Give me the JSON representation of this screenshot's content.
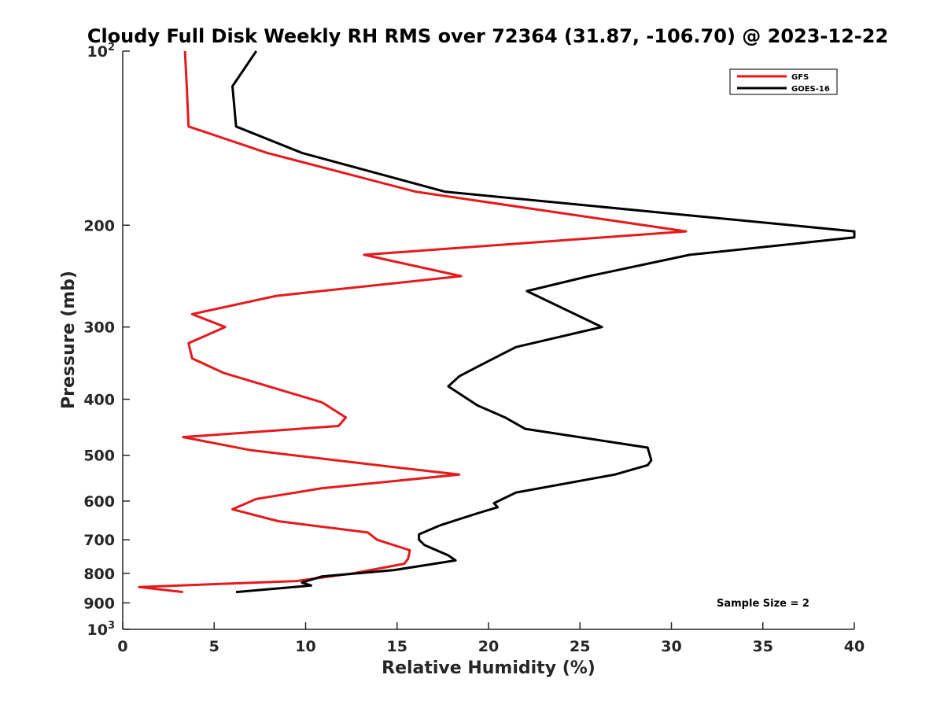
{
  "chart_data": {
    "type": "line",
    "title": "Cloudy Full Disk Weekly RH RMS over 72364 (31.87, -106.70) @ 2023-12-22",
    "xlabel": "Relative Humidity (%)",
    "ylabel": "Pressure (mb)",
    "xlim": [
      0,
      40
    ],
    "ylim": [
      100,
      1000
    ],
    "y_scale": "log",
    "y_reversed": true,
    "grid": false,
    "legend_position": "top-right",
    "x_ticks": [
      0,
      5,
      10,
      15,
      20,
      25,
      30,
      35,
      40
    ],
    "y_ticks": [
      {
        "value": 100,
        "base": "10",
        "exp": "2"
      },
      {
        "value": 200,
        "label": "200"
      },
      {
        "value": 300,
        "label": "300"
      },
      {
        "value": 400,
        "label": "400"
      },
      {
        "value": 500,
        "label": "500"
      },
      {
        "value": 600,
        "label": "600"
      },
      {
        "value": 700,
        "label": "700"
      },
      {
        "value": 800,
        "label": "800"
      },
      {
        "value": 900,
        "label": "900"
      },
      {
        "value": 1000,
        "base": "10",
        "exp": "3"
      }
    ],
    "annotation": "Sample Size = 2",
    "series": [
      {
        "name": "GFS",
        "color": "#e41a1c",
        "points": [
          [
            3.4,
            100
          ],
          [
            3.5,
            115
          ],
          [
            3.6,
            135
          ],
          [
            7.9,
            150
          ],
          [
            16,
            175
          ],
          [
            30.8,
            205
          ],
          [
            13.2,
            225
          ],
          [
            18.5,
            245
          ],
          [
            8.4,
            265
          ],
          [
            3.8,
            285
          ],
          [
            5.6,
            300
          ],
          [
            3.6,
            320
          ],
          [
            3.8,
            340
          ],
          [
            5.5,
            360
          ],
          [
            10.9,
            405
          ],
          [
            12.2,
            430
          ],
          [
            11.8,
            445
          ],
          [
            3.3,
            465
          ],
          [
            7,
            490
          ],
          [
            13.9,
            520
          ],
          [
            18.4,
            540
          ],
          [
            10.9,
            570
          ],
          [
            7.3,
            595
          ],
          [
            6.0,
            620
          ],
          [
            8.5,
            650
          ],
          [
            13.4,
            680
          ],
          [
            13.9,
            700
          ],
          [
            15.7,
            730
          ],
          [
            15.6,
            755
          ],
          [
            15.4,
            770
          ],
          [
            12.6,
            800
          ],
          [
            9.5,
            825
          ],
          [
            0.9,
            845
          ],
          [
            3.3,
            862
          ]
        ]
      },
      {
        "name": "GOES-16",
        "color": "#000000",
        "points": [
          [
            7.3,
            100
          ],
          [
            6.0,
            115
          ],
          [
            6.2,
            135
          ],
          [
            9.8,
            150
          ],
          [
            17.6,
            175
          ],
          [
            40,
            205
          ],
          [
            40,
            210
          ],
          [
            31,
            225
          ],
          [
            25.5,
            245
          ],
          [
            22.1,
            260
          ],
          [
            26.2,
            300
          ],
          [
            21.5,
            325
          ],
          [
            19.5,
            350
          ],
          [
            18.4,
            365
          ],
          [
            17.8,
            380
          ],
          [
            19.4,
            410
          ],
          [
            20.9,
            430
          ],
          [
            22.0,
            450
          ],
          [
            28.7,
            485
          ],
          [
            28.9,
            510
          ],
          [
            28.7,
            520
          ],
          [
            26.9,
            540
          ],
          [
            21.5,
            580
          ],
          [
            20.3,
            605
          ],
          [
            20.5,
            615
          ],
          [
            19.4,
            630
          ],
          [
            17.4,
            660
          ],
          [
            16.2,
            685
          ],
          [
            16.2,
            700
          ],
          [
            16.5,
            715
          ],
          [
            17.8,
            745
          ],
          [
            18.2,
            760
          ],
          [
            16.5,
            775
          ],
          [
            14.8,
            790
          ],
          [
            10.9,
            810
          ],
          [
            9.8,
            830
          ],
          [
            10.3,
            840
          ],
          [
            6.2,
            862
          ]
        ]
      }
    ]
  }
}
